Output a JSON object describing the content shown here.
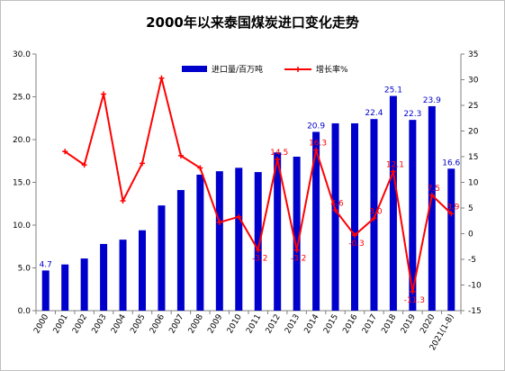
{
  "chart_data": {
    "type": "bar",
    "title": "2000年以来泰国煤炭进口变化走势",
    "categories": [
      "2000",
      "2001",
      "2002",
      "2003",
      "2004",
      "2005",
      "2006",
      "2007",
      "2008",
      "2009",
      "2010",
      "2011",
      "2012",
      "2013",
      "2014",
      "2015",
      "2016",
      "2017",
      "2018",
      "2019",
      "2020",
      "2021(1-8)"
    ],
    "series": [
      {
        "name": "进口量/百万吨",
        "type": "bar",
        "axis": "left",
        "color": "#0000cc",
        "values": [
          4.7,
          5.4,
          6.1,
          7.8,
          8.3,
          9.4,
          12.3,
          14.1,
          15.9,
          16.3,
          16.7,
          16.2,
          18.5,
          18.0,
          20.9,
          21.9,
          21.9,
          22.4,
          25.1,
          22.3,
          23.9,
          16.6
        ],
        "data_labels": {
          "0": "4.7",
          "14": "20.9",
          "17": "22.4",
          "18": "25.1",
          "19": "22.3",
          "20": "23.9",
          "21": "16.6"
        }
      },
      {
        "name": "增长率%",
        "type": "line",
        "axis": "right",
        "color": "#ff0000",
        "values": [
          null,
          16.0,
          13.4,
          27.2,
          6.4,
          13.7,
          30.3,
          15.2,
          12.8,
          2.2,
          3.3,
          -3.2,
          14.5,
          -3.2,
          16.3,
          4.6,
          -0.3,
          3.0,
          12.1,
          -11.3,
          7.5,
          3.9
        ],
        "data_labels": {
          "11": "-3.2",
          "12": "14.5",
          "13": "-3.2",
          "14": "16.3",
          "15": "4.6",
          "16": "-0.3",
          "17": "3.0",
          "18": "12.1",
          "19": "-11.3",
          "20": "7.5",
          "21": "3.9"
        }
      }
    ],
    "y_left": {
      "min": 0,
      "max": 30,
      "step": 5,
      "ticks": [
        "0.0",
        "5.0",
        "10.0",
        "15.0",
        "20.0",
        "25.0",
        "30.0"
      ]
    },
    "y_right": {
      "min": -15,
      "max": 35,
      "step": 5,
      "ticks": [
        "-15",
        "-10",
        "-5",
        "0",
        "5",
        "10",
        "15",
        "20",
        "25",
        "30",
        "35"
      ]
    },
    "grid": false,
    "legend_position": "top-right"
  }
}
